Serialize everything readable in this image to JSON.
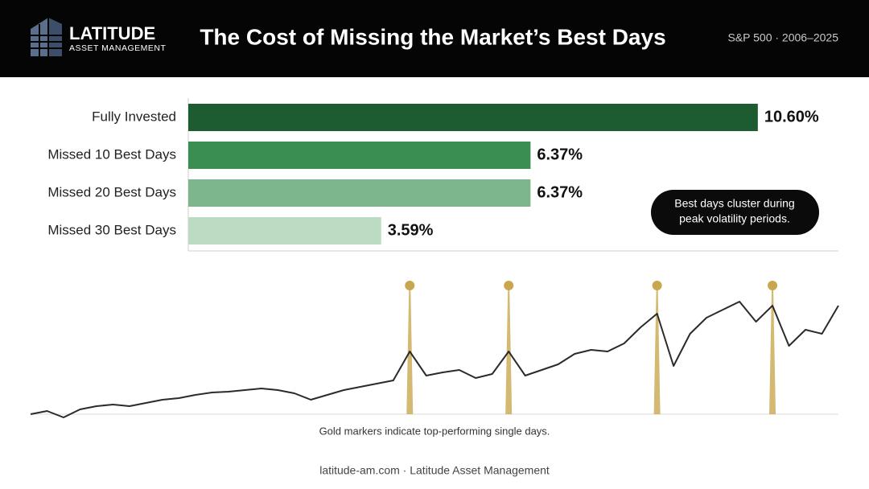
{
  "header": {
    "brand": "LATITUDE",
    "brand_sub": "ASSET MANAGEMENT",
    "title": "The Cost of Missing the Market’s Best Days",
    "subtitle": "S&P 500 · 2006–2025"
  },
  "chart_data": [
    {
      "type": "hbar",
      "categories": [
        "Fully Invested",
        "Missed 10 Best Days",
        "Missed 20 Best Days",
        "Missed 30 Best Days"
      ],
      "values": [
        10.6,
        6.37,
        6.37,
        3.59
      ],
      "value_labels": [
        "10.60%",
        "6.37%",
        "6.37%",
        "3.59%"
      ],
      "colors": [
        "#1d5c30",
        "#3a8e51",
        "#7db58c",
        "#bcdbc3"
      ],
      "xlim": [
        0,
        12.1
      ],
      "annotation": "Best days cluster during peak volatility periods."
    },
    {
      "type": "line",
      "color": "#2b2b2b",
      "marker_color": "#c9a74f",
      "values": [
        0,
        4,
        -4,
        6,
        10,
        12,
        10,
        14,
        18,
        20,
        24,
        27,
        28,
        30,
        32,
        30,
        26,
        18,
        24,
        30,
        34,
        38,
        42,
        78,
        48,
        52,
        55,
        45,
        50,
        78,
        48,
        55,
        62,
        75,
        80,
        78,
        88,
        108,
        125,
        60,
        100,
        120,
        130,
        140,
        115,
        135,
        85,
        105,
        100,
        135
      ],
      "markers": [
        23,
        29,
        38,
        45
      ],
      "xlim": [
        0,
        49
      ],
      "ylim": [
        -10,
        160
      ],
      "caption": "Gold markers indicate top-performing single days."
    }
  ],
  "footer": "latitude-am.com · Latitude Asset Management"
}
